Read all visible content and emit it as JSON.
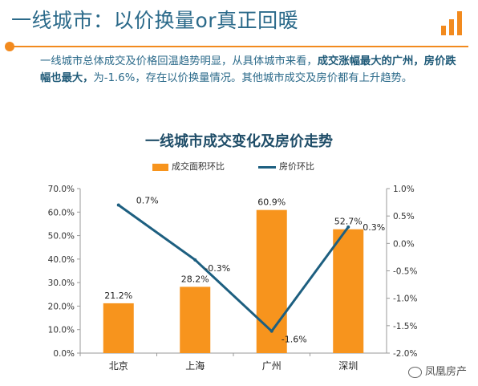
{
  "header": {
    "title": "一线城市：以价换量or真正回暖",
    "logo_icon": "bar-chart-icon",
    "accent_color": "#f28a1e"
  },
  "intro": {
    "part1": "一线城市总体成交及价格回温趋势明显，从具体城市来看，",
    "part2_bold": "成交涨幅最大的广州，房价跌幅也最大，",
    "part3": "为-1.6%，存在以价换量情况。其他城市成交及房价都有上升趋势。"
  },
  "watermark": {
    "icon": "wechat-icon",
    "text": "凤凰房产"
  },
  "chart_data": {
    "type": "bar",
    "title": "一线城市成交变化及房价走势",
    "categories": [
      "北京",
      "上海",
      "广州",
      "深圳"
    ],
    "series": [
      {
        "name": "成交面积环比",
        "type": "bar",
        "axis": "left",
        "values": [
          21.2,
          28.2,
          60.9,
          52.7
        ],
        "labels": [
          "21.2%",
          "28.2%",
          "60.9%",
          "52.7%"
        ],
        "color": "#f7941d"
      },
      {
        "name": "房价环比",
        "type": "line",
        "axis": "right",
        "values": [
          0.7,
          -0.3,
          -1.6,
          0.3
        ],
        "labels": [
          "0.7%",
          "-0.3%",
          "-1.6%",
          "0.3%"
        ],
        "color": "#1d5f80"
      }
    ],
    "ylim_left": [
      0,
      70
    ],
    "yticks_left": [
      "0.0%",
      "10.0%",
      "20.0%",
      "30.0%",
      "40.0%",
      "50.0%",
      "60.0%",
      "70.0%"
    ],
    "ylim_right": [
      -2.0,
      1.0
    ],
    "yticks_right": [
      "-2.0%",
      "-1.5%",
      "-1.0%",
      "-0.5%",
      "0.0%",
      "0.5%",
      "1.0%"
    ],
    "grid": false,
    "legend_position": "top"
  }
}
